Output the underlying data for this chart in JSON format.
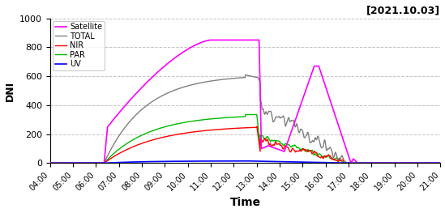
{
  "title": "[2021.10.03]",
  "xlabel": "Time",
  "ylabel": "DNI",
  "ylim": [
    0,
    1000
  ],
  "xlim_hours": [
    4,
    21
  ],
  "yticks": [
    0,
    200,
    400,
    600,
    800,
    1000
  ],
  "xtick_hours": [
    4,
    5,
    6,
    7,
    8,
    9,
    10,
    11,
    12,
    13,
    14,
    15,
    16,
    17,
    18,
    19,
    20,
    21
  ],
  "colors": {
    "Satellite": "#FF00FF",
    "TOTAL": "#808080",
    "NIR": "#FF0000",
    "PAR": "#00BB00",
    "UV": "#0000FF"
  },
  "linewidths": {
    "Satellite": 1.2,
    "TOTAL": 1.0,
    "NIR": 1.0,
    "PAR": 1.0,
    "UV": 1.2
  },
  "background_color": "#ffffff",
  "grid_color": "#aaaaaa",
  "grid_linestyle": "--",
  "grid_alpha": 0.7
}
